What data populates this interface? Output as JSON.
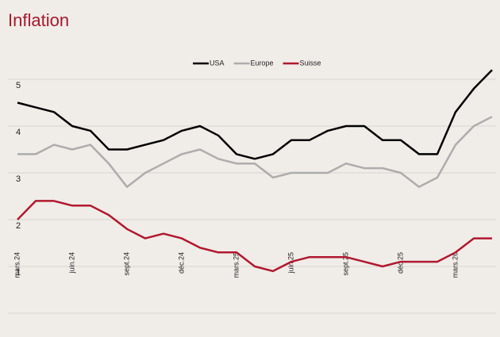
{
  "chart_data": {
    "type": "line",
    "title": "Inflation",
    "categories": [
      "mars.24",
      null,
      null,
      "juin.24",
      null,
      null,
      "sept.24",
      null,
      null,
      "déc.24",
      null,
      null,
      "mars.25",
      null,
      null,
      "juin.25",
      null,
      null,
      "sept.25",
      null,
      null,
      "déc.25",
      null,
      null,
      "mars.26",
      null,
      null
    ],
    "series": [
      {
        "name": "USA",
        "color": "#000000",
        "values": [
          4.5,
          4.4,
          4.3,
          4.0,
          3.9,
          3.5,
          3.5,
          3.6,
          3.7,
          3.9,
          4.0,
          3.8,
          3.4,
          3.3,
          3.4,
          3.7,
          3.7,
          3.9,
          4.0,
          4.0,
          3.7,
          3.7,
          3.4,
          3.4,
          4.3,
          4.8,
          5.2
        ]
      },
      {
        "name": "Europe",
        "color": "#adadad",
        "values": [
          3.4,
          3.4,
          3.6,
          3.5,
          3.6,
          3.2,
          2.7,
          3.0,
          3.2,
          3.4,
          3.5,
          3.3,
          3.2,
          3.2,
          2.9,
          3.0,
          3.0,
          3.0,
          3.2,
          3.1,
          3.1,
          3.0,
          2.7,
          2.9,
          3.6,
          4.0,
          4.2
        ]
      },
      {
        "name": "Suisse",
        "color": "#b0182f",
        "values": [
          2.0,
          2.4,
          2.4,
          2.3,
          2.3,
          2.1,
          1.8,
          1.6,
          1.7,
          1.6,
          1.4,
          1.3,
          1.3,
          1.0,
          0.9,
          1.1,
          1.2,
          1.2,
          1.2,
          1.1,
          1.0,
          1.1,
          1.1,
          1.1,
          1.3,
          1.6,
          1.6
        ]
      }
    ],
    "ylim": [
      0,
      5.5
    ],
    "yticks": [
      1,
      2,
      3,
      4,
      5
    ],
    "grid": true,
    "legend": "top"
  }
}
